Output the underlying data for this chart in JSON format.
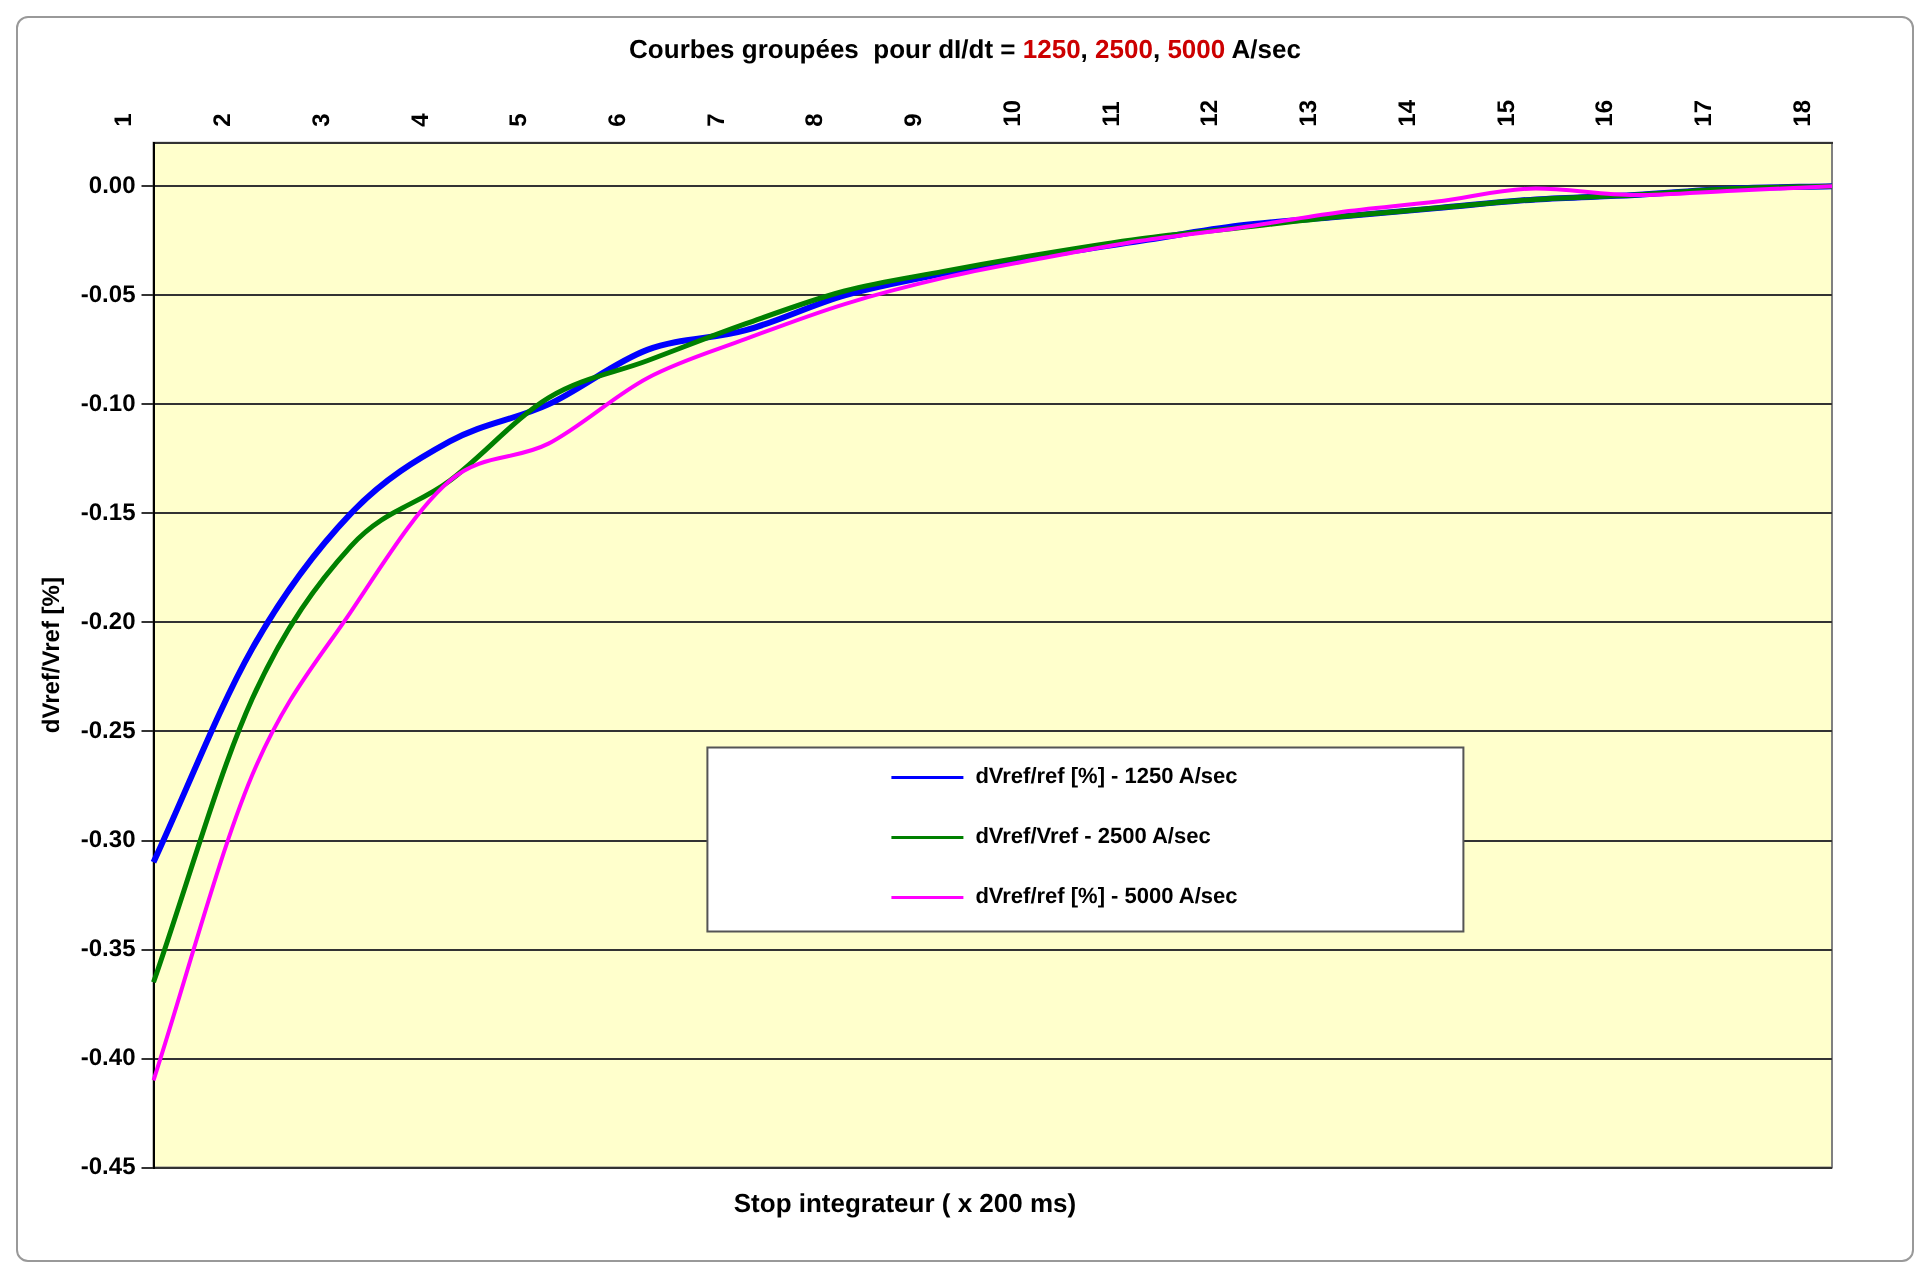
{
  "chart_data": {
    "type": "line",
    "title": "Courbes groupées  pour dI/dt = 1250, 2500, 5000 A/sec",
    "xlabel": "Stop integrateur ( x 200 ms)",
    "ylabel": "dVref/Vref [%]",
    "categories": [
      "1",
      "2",
      "3",
      "4",
      "5",
      "6",
      "7",
      "8",
      "9",
      "10",
      "11",
      "12",
      "13",
      "14",
      "15",
      "16",
      "17",
      "18"
    ],
    "series": [
      {
        "name": "dVref/ref [%] - 1250 A/sec",
        "color": "#0000ff",
        "values": [
          -0.31,
          -0.212,
          -0.15,
          -0.117,
          -0.1,
          -0.075,
          -0.066,
          -0.05,
          -0.04,
          -0.032,
          -0.025,
          -0.018,
          -0.014,
          -0.01,
          -0.006,
          -0.004,
          -0.001,
          0
        ]
      },
      {
        "name": "dVref/Vref - 2500 A/sec",
        "color": "#008000",
        "values": [
          -0.365,
          -0.235,
          -0.165,
          -0.135,
          -0.097,
          -0.08,
          -0.063,
          -0.048,
          -0.039,
          -0.031,
          -0.024,
          -0.019,
          -0.014,
          -0.01,
          -0.006,
          -0.004,
          -0.001,
          0
        ]
      },
      {
        "name": "dVref/ref [%] - 5000 A/sec",
        "color": "#ff00ff",
        "values": [
          -0.41,
          -0.27,
          -0.195,
          -0.135,
          -0.118,
          -0.088,
          -0.07,
          -0.054,
          -0.042,
          -0.033,
          -0.025,
          -0.019,
          -0.012,
          -0.007,
          -0.001,
          -0.004,
          -0.002,
          0
        ]
      }
    ],
    "ylim": [
      -0.45,
      0.02
    ],
    "yticks": [
      {
        "value": -0.45,
        "label": "-0.45"
      },
      {
        "value": -0.4,
        "label": "-0.40"
      },
      {
        "value": -0.35,
        "label": "-0.35"
      },
      {
        "value": -0.3,
        "label": "-0.30"
      },
      {
        "value": -0.25,
        "label": "-0.25"
      },
      {
        "value": -0.2,
        "label": "-0.20"
      },
      {
        "value": -0.15,
        "label": "-0.15"
      },
      {
        "value": -0.1,
        "label": "-0.10"
      },
      {
        "value": -0.05,
        "label": "-0.05"
      },
      {
        "value": 0,
        "label": "0.00"
      }
    ],
    "grid": "y",
    "legend": "bottom",
    "marker": "none",
    "line_style": "solid"
  }
}
